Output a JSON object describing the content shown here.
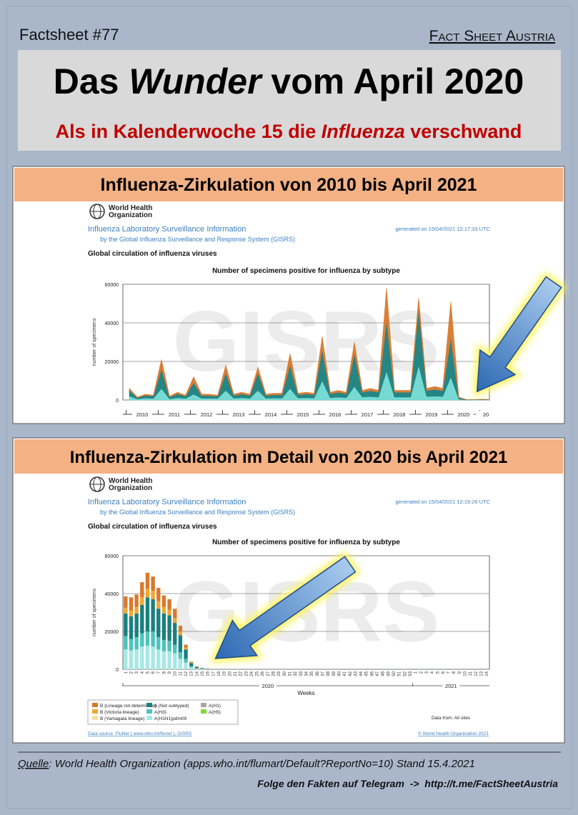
{
  "header": {
    "label": "Factsheet #77",
    "brand": "Fact Sheet Austria",
    "title": [
      "Das ",
      "Wunder",
      " vom April 2020"
    ],
    "subtitle": [
      "Als in Kalenderwoche 15 die ",
      "Influenza",
      " verschwand"
    ]
  },
  "panels": [
    {
      "heading": "Influenza-Zirkulation von 2010 bis April 2021",
      "org": [
        "World Health",
        "Organization"
      ],
      "report_title": "Influenza Laboratory Surveillance Information",
      "report_subtitle": "by the Global Influenza Surveillance and Response System (GISRS)",
      "generated": "generated on 15/04/2021 12:17:33 UTC",
      "section": "Global circulation of influenza viruses",
      "watermark": "GISRS",
      "chart_data": {
        "type": "area",
        "stacked": true,
        "grid": true,
        "title": "Number of specimens positive for influenza by subtype",
        "y_label": "number of specimens",
        "x": [
          2010.1,
          2010.35,
          2010.6,
          2010.85,
          2011.1,
          2011.35,
          2011.6,
          2011.85,
          2012.1,
          2012.35,
          2012.6,
          2012.85,
          2013.1,
          2013.35,
          2013.6,
          2013.85,
          2014.1,
          2014.35,
          2014.6,
          2014.85,
          2015.1,
          2015.35,
          2015.6,
          2015.85,
          2016.1,
          2016.35,
          2016.6,
          2016.85,
          2017.1,
          2017.35,
          2017.6,
          2017.85,
          2018.1,
          2018.35,
          2018.6,
          2018.85,
          2019.1,
          2019.35,
          2019.6,
          2019.85,
          2020.1,
          2020.35,
          2020.6,
          2020.85,
          2021.1,
          2021.27
        ],
        "series": [
          {
            "color": "#d9782d",
            "values": [
              1000,
              300,
              500,
              500,
              5000,
              500,
              800,
              500,
              3000,
              700,
              700,
              500,
              4000,
              700,
              800,
              700,
              3000,
              700,
              800,
              800,
              6000,
              800,
              800,
              800,
              7000,
              800,
              1000,
              800,
              6000,
              1000,
              1200,
              1000,
              17000,
              1000,
              1000,
              1000,
              6000,
              1200,
              1500,
              1200,
              19000,
              400,
              50,
              50,
              100,
              50
            ]
          },
          {
            "color": "#1a7f7f",
            "values": [
              3000,
              700,
              1500,
              1200,
              10000,
              900,
              2000,
              1200,
              6000,
              1400,
              1400,
              1200,
              9000,
              1400,
              2000,
              1400,
              9000,
              1400,
              1700,
              1700,
              12000,
              1700,
              2000,
              1700,
              16000,
              2000,
              2500,
              2000,
              17000,
              2500,
              3000,
              2500,
              26000,
              2500,
              2500,
              2500,
              29000,
              3000,
              3500,
              3000,
              20000,
              700,
              100,
              150,
              200,
              150
            ]
          },
          {
            "color": "#6fd8d0",
            "values": [
              2000,
              500,
              1000,
              800,
              6000,
              600,
              1200,
              800,
              3000,
              900,
              900,
              800,
              5000,
              900,
              1200,
              900,
              5000,
              900,
              1000,
              1000,
              6000,
              1000,
              1200,
              1000,
              10000,
              1200,
              1500,
              1200,
              7000,
              1500,
              1800,
              1500,
              15000,
              1500,
              1500,
              1500,
              18000,
              1800,
              2000,
              1800,
              12000,
              400,
              50,
              100,
              100,
              100
            ]
          }
        ],
        "xlim": [
          2009.9,
          2021.3
        ],
        "xticks": [
          2010,
          2011,
          2012,
          2013,
          2014,
          2015,
          2016,
          2017,
          2018,
          2019,
          2020,
          {
            "value": 2021,
            "label": "20"
          }
        ],
        "ylim": [
          0,
          60000
        ],
        "yticks": [
          0,
          20000,
          40000,
          60000
        ]
      }
    },
    {
      "heading": "Influenza-Zirkulation im Detail von 2020 bis April 2021",
      "org": [
        "World Health",
        "Organization"
      ],
      "report_title": "Influenza Laboratory Surveillance Information",
      "report_subtitle": "by the Global Influenza Surveillance and Response System (GISRS)",
      "generated": "generated on 15/04/2021 12:19:26 UTC",
      "section": "Global circulation of influenza viruses",
      "watermark": "GISRS",
      "chart_data": {
        "type": "bar",
        "stacked": true,
        "grid": true,
        "title": "Number of specimens positive for influenza by subtype",
        "y_label": "number of specimens",
        "x_label": "Weeks",
        "year_labels": [
          "2020",
          "2021"
        ],
        "categories": [
          "1",
          "2",
          "3",
          "4",
          "5",
          "6",
          "7",
          "8",
          "9",
          "10",
          "11",
          "12",
          "13",
          "14",
          "15",
          "16",
          "17",
          "18",
          "19",
          "20",
          "21",
          "22",
          "23",
          "24",
          "25",
          "26",
          "27",
          "28",
          "29",
          "30",
          "31",
          "32",
          "33",
          "34",
          "35",
          "36",
          "37",
          "38",
          "39",
          "40",
          "41",
          "42",
          "43",
          "44",
          "45",
          "46",
          "47",
          "48",
          "49",
          "50",
          "51",
          "52",
          "53",
          "1",
          "2",
          "3",
          "4",
          "5",
          "6",
          "7",
          "8",
          "9",
          "10",
          "11",
          "12",
          "13",
          "14"
        ],
        "series": [
          {
            "name": "B (Lineage not determined)",
            "color": "#d9782d",
            "values": [
              6000,
              7000,
              6500,
              8000,
              8500,
              7500,
              7000,
              6000,
              5500,
              5000,
              3000,
              1500,
              500,
              200,
              100,
              50,
              0,
              0,
              0,
              0,
              0,
              0,
              0,
              0,
              0,
              0,
              0,
              0,
              0,
              0,
              0,
              0,
              0,
              0,
              0,
              0,
              0,
              0,
              0,
              0,
              0,
              0,
              0,
              0,
              0,
              0,
              0,
              0,
              0,
              0,
              0,
              0,
              0,
              0,
              0,
              0,
              0,
              0,
              0,
              0,
              0,
              0,
              0,
              0,
              0,
              0,
              0
            ]
          },
          {
            "name": "B (Victoria lineage)",
            "color": "#f0a830",
            "values": [
              3000,
              3000,
              3500,
              4000,
              4500,
              4500,
              4000,
              3500,
              3000,
              2500,
              2000,
              1000,
              300,
              100,
              50,
              20,
              0,
              0,
              0,
              0,
              0,
              0,
              0,
              0,
              0,
              0,
              0,
              0,
              0,
              0,
              0,
              0,
              0,
              0,
              0,
              0,
              0,
              0,
              0,
              0,
              0,
              0,
              0,
              0,
              0,
              0,
              0,
              0,
              0,
              0,
              0,
              0,
              0,
              0,
              0,
              0,
              0,
              0,
              0,
              0,
              0,
              0,
              0,
              0,
              0,
              0,
              0
            ]
          },
          {
            "name": "B (Yamagata lineage)",
            "color": "#f5dea8",
            "values": [
              0,
              0,
              0,
              0,
              0,
              0,
              0,
              0,
              0,
              0,
              0,
              0,
              0,
              0,
              0,
              0,
              0,
              0,
              0,
              0,
              0,
              0,
              0,
              0,
              0,
              0,
              0,
              0,
              0,
              0,
              0,
              0,
              0,
              0,
              0,
              0,
              0,
              0,
              0,
              0,
              0,
              0,
              0,
              0,
              0,
              0,
              0,
              0,
              0,
              0,
              0,
              0,
              0,
              0,
              0,
              0,
              0,
              0,
              0,
              0,
              0,
              0,
              0,
              0,
              0,
              0,
              0
            ]
          },
          {
            "name": "A (Not subtyped)",
            "color": "#1a7f7f",
            "values": [
              12000,
              12000,
              12500,
              15000,
              18000,
              17000,
              15000,
              14000,
              13500,
              11500,
              9000,
              5000,
              1500,
              600,
              350,
              180,
              50,
              50,
              50,
              50,
              50,
              50,
              50,
              50,
              50,
              50,
              50,
              50,
              50,
              50,
              50,
              50,
              50,
              50,
              50,
              50,
              50,
              50,
              50,
              50,
              50,
              50,
              50,
              50,
              50,
              50,
              50,
              50,
              50,
              50,
              50,
              50,
              50,
              100,
              100,
              100,
              100,
              100,
              100,
              100,
              100,
              100,
              100,
              100,
              100,
              100,
              100
            ]
          },
          {
            "name": "A(H3)",
            "color": "#4cc3bd",
            "values": [
              7000,
              6000,
              6500,
              7000,
              7500,
              8000,
              6500,
              6000,
              5500,
              4500,
              3500,
              2000,
              700,
              200,
              100,
              50,
              0,
              0,
              0,
              0,
              0,
              0,
              0,
              0,
              0,
              0,
              0,
              0,
              0,
              0,
              0,
              0,
              0,
              0,
              0,
              0,
              0,
              0,
              0,
              0,
              0,
              0,
              0,
              0,
              0,
              0,
              0,
              0,
              0,
              0,
              0,
              0,
              0,
              0,
              0,
              0,
              0,
              0,
              0,
              0,
              0,
              0,
              0,
              0,
              0,
              0,
              0
            ]
          },
          {
            "name": "A(H1N1)pdm09",
            "color": "#a6e8e4",
            "values": [
              10500,
              10000,
              10500,
              12000,
              12500,
              12000,
              10500,
              9500,
              9500,
              8500,
              5500,
              3500,
              1000,
              400,
              200,
              100,
              0,
              0,
              0,
              0,
              0,
              0,
              0,
              0,
              0,
              0,
              0,
              0,
              0,
              0,
              0,
              0,
              0,
              0,
              0,
              0,
              0,
              0,
              0,
              0,
              0,
              0,
              0,
              0,
              0,
              0,
              0,
              0,
              0,
              0,
              0,
              0,
              0,
              0,
              0,
              0,
              0,
              0,
              0,
              0,
              0,
              0,
              0,
              0,
              0,
              0,
              0
            ]
          },
          {
            "name": "A(H1)",
            "color": "#a6a6a6",
            "values": [
              0,
              0,
              0,
              0,
              0,
              0,
              0,
              0,
              0,
              0,
              0,
              0,
              0,
              0,
              0,
              0,
              0,
              0,
              0,
              0,
              0,
              0,
              0,
              0,
              0,
              0,
              0,
              0,
              0,
              0,
              0,
              0,
              0,
              0,
              0,
              0,
              0,
              0,
              0,
              0,
              0,
              0,
              0,
              0,
              0,
              0,
              0,
              0,
              0,
              0,
              0,
              0,
              0,
              0,
              0,
              0,
              0,
              0,
              0,
              0,
              0,
              0,
              0,
              0,
              0,
              0,
              0
            ]
          },
          {
            "name": "A(H5)",
            "color": "#7ddc3c",
            "values": [
              0,
              0,
              0,
              0,
              0,
              0,
              0,
              0,
              0,
              0,
              0,
              0,
              0,
              0,
              0,
              0,
              0,
              0,
              0,
              0,
              0,
              0,
              0,
              0,
              0,
              0,
              0,
              0,
              0,
              0,
              0,
              0,
              0,
              0,
              0,
              0,
              0,
              0,
              0,
              0,
              0,
              0,
              0,
              0,
              0,
              0,
              0,
              0,
              0,
              0,
              0,
              0,
              0,
              0,
              0,
              0,
              0,
              0,
              0,
              0,
              0,
              0,
              0,
              0,
              0,
              0,
              0
            ]
          }
        ],
        "ylim": [
          0,
          60000
        ],
        "yticks": [
          0,
          20000,
          40000,
          60000
        ],
        "data_from": "Data from: All sites",
        "data_source": "Data source: FluNet ( www.who.int/flunet ), GISRS",
        "copyright": "© World Health Organization 2021"
      }
    }
  ],
  "footer": {
    "source_label": "Quelle",
    "source_text": ": World Health Organization (apps.who.int/flumart/Default?ReportNo=10) Stand 15.4.2021",
    "telegram": "Folge den Fakten auf Telegram  ->  http://t.me/FactSheetAustria"
  }
}
